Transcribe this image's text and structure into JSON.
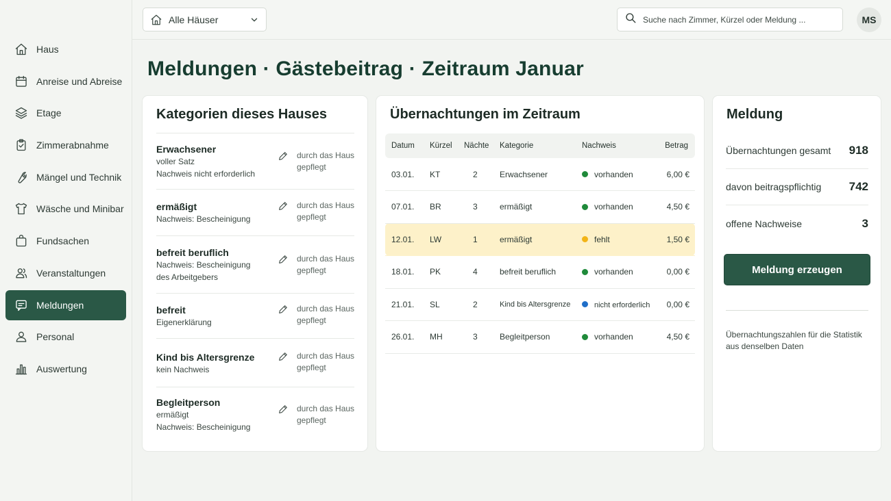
{
  "sidebar": {
    "items": [
      {
        "label": "Haus",
        "icon": "home-icon"
      },
      {
        "label": "Anreise und Abreise",
        "icon": "calendar-icon"
      },
      {
        "label": "Etage",
        "icon": "layers-icon"
      },
      {
        "label": "Zimmerabnahme",
        "icon": "clipboard-check-icon"
      },
      {
        "label": "Mängel und Technik",
        "icon": "wrench-icon"
      },
      {
        "label": "Wäsche und Minibar",
        "icon": "shirt-icon"
      },
      {
        "label": "Fundsachen",
        "icon": "bag-icon"
      },
      {
        "label": "Veranstaltungen",
        "icon": "users-icon"
      },
      {
        "label": "Meldungen",
        "icon": "message-icon",
        "active": true
      },
      {
        "label": "Personal",
        "icon": "person-icon"
      },
      {
        "label": "Auswertung",
        "icon": "bar-chart-icon"
      }
    ]
  },
  "header": {
    "house_select": "Alle Häuser",
    "search_placeholder": "Suche nach Zimmer, Kürzel oder Meldung ...",
    "avatar": "MS"
  },
  "page_title": "Meldungen · Gästebeitrag · Zeitraum Januar",
  "categories": {
    "title": "Kategorien dieses Hauses",
    "items": [
      {
        "name": "Erwachsener",
        "lines": [
          "voller Satz",
          "Nachweis nicht erforderlich"
        ],
        "note": "durch das Haus gepflegt"
      },
      {
        "name": "ermäßigt",
        "lines": [
          "Nachweis: Bescheinigung"
        ],
        "note": "durch das Haus gepflegt"
      },
      {
        "name": "befreit beruflich",
        "lines": [
          "Nachweis: Bescheinigung",
          "des Arbeitgebers"
        ],
        "note": "durch das Haus gepflegt"
      },
      {
        "name": "befreit",
        "lines": [
          "Eigenerklärung"
        ],
        "note": "durch das Haus gepflegt"
      },
      {
        "name": "Kind bis Altersgrenze",
        "lines": [
          "kein Nachweis"
        ],
        "note": "durch das Haus gepflegt"
      },
      {
        "name": "Begleitperson",
        "lines": [
          "ermäßigt",
          "Nachweis: Bescheinigung"
        ],
        "note": "durch das Haus gepflegt"
      }
    ]
  },
  "stays": {
    "title": "Übernachtungen im Zeitraum",
    "columns": [
      "Datum",
      "Kürzel",
      "Nächte",
      "Kategorie",
      "Nachweis",
      "Betrag"
    ],
    "rows": [
      {
        "datum": "03.01.",
        "kuerzel": "KT",
        "naechte": "2",
        "kategorie": "Erwachsener",
        "nachweis": "vorhanden",
        "status_color": "#1f8a3a",
        "betrag": "6,00 €"
      },
      {
        "datum": "07.01.",
        "kuerzel": "BR",
        "naechte": "3",
        "kategorie": "ermäßigt",
        "nachweis": "vorhanden",
        "status_color": "#1f8a3a",
        "betrag": "4,50 €"
      },
      {
        "datum": "12.01.",
        "kuerzel": "LW",
        "naechte": "1",
        "kategorie": "ermäßigt",
        "nachweis": "fehlt",
        "status_color": "#f2b417",
        "betrag": "1,50 €",
        "highlight": true
      },
      {
        "datum": "18.01.",
        "kuerzel": "PK",
        "naechte": "4",
        "kategorie": "befreit beruflich",
        "nachweis": "vorhanden",
        "status_color": "#1f8a3a",
        "betrag": "0,00 €"
      },
      {
        "datum": "21.01.",
        "kuerzel": "SL",
        "naechte": "2",
        "kategorie": "Kind bis Altersgrenze",
        "nachweis": "nicht erforderlich",
        "status_color": "#1f6ec8",
        "betrag": "0,00 €"
      },
      {
        "datum": "26.01.",
        "kuerzel": "MH",
        "naechte": "3",
        "kategorie": "Begleitperson",
        "nachweis": "vorhanden",
        "status_color": "#1f8a3a",
        "betrag": "4,50 €"
      }
    ]
  },
  "report": {
    "title": "Meldung",
    "stats": [
      {
        "label": "Übernachtungen gesamt",
        "value": "918"
      },
      {
        "label": "davon beitragspflichtig",
        "value": "742"
      },
      {
        "label": "offene Nachweise",
        "value": "3"
      }
    ],
    "button": "Meldung erzeugen",
    "note": "Übernachtungszahlen für die Statistik aus denselben Daten"
  },
  "colors": {
    "accent": "#2a5846",
    "highlight": "#fdf1c9"
  }
}
